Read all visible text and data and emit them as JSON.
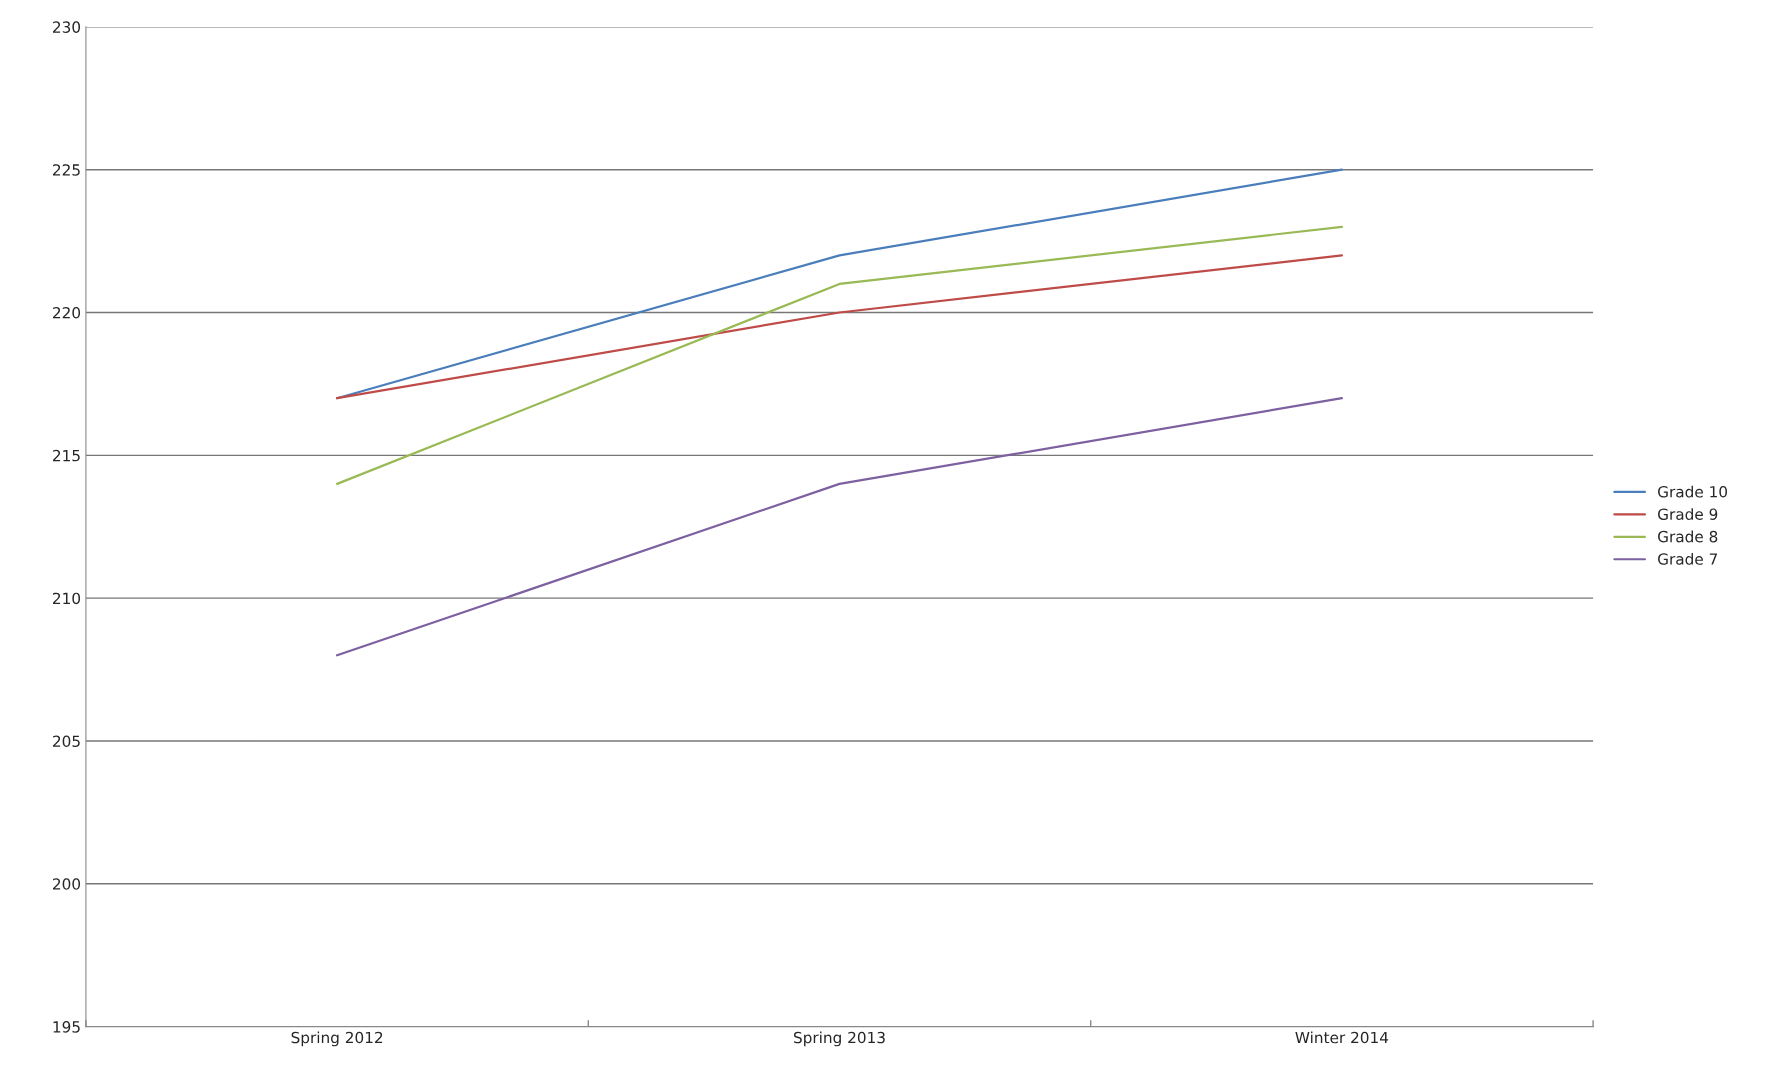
{
  "chart_data": {
    "type": "line",
    "categories": [
      "Spring 2012",
      "Spring 2013",
      "Winter 2014"
    ],
    "series": [
      {
        "name": "Grade 10",
        "color": "#4a7ebb",
        "values": [
          217,
          222,
          225
        ]
      },
      {
        "name": "Grade 9",
        "color": "#be4b48",
        "values": [
          217,
          220,
          222
        ]
      },
      {
        "name": "Grade 8",
        "color": "#98b954",
        "values": [
          214,
          221,
          223
        ]
      },
      {
        "name": "Grade 7",
        "color": "#7d60a0",
        "values": [
          208,
          214,
          217
        ]
      }
    ],
    "ylim": [
      195,
      230
    ],
    "yticks": [
      195,
      200,
      205,
      210,
      215,
      220,
      225,
      230
    ],
    "grid": "y",
    "legend": "right",
    "marker": "none",
    "line_style": "solid"
  }
}
